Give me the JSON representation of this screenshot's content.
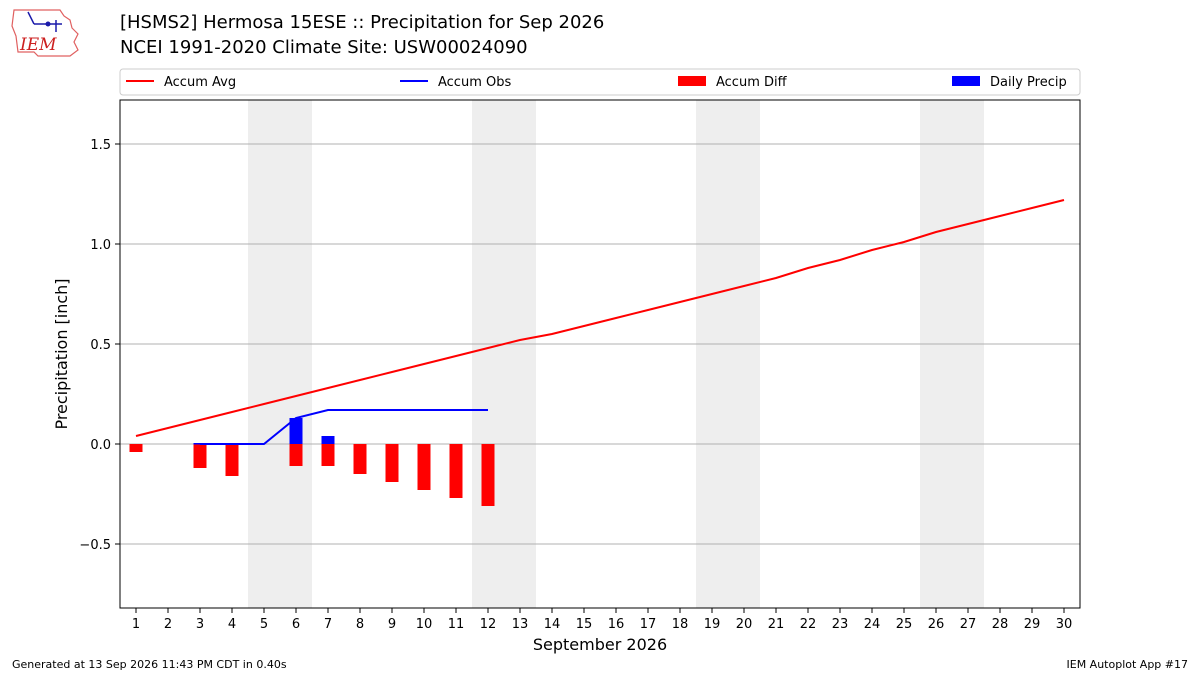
{
  "header": {
    "title_line1": "[HSMS2] Hermosa 15ESE :: Precipitation for Sep 2026",
    "title_line2": "NCEI 1991-2020 Climate Site: USW00024090",
    "logo_text": "IEM"
  },
  "footer": {
    "left": "Generated at 13 Sep 2026 11:43 PM CDT in 0.40s",
    "right": "IEM Autoplot App #17"
  },
  "colors": {
    "avg": "#ff0000",
    "obs": "#0000ff",
    "diff": "#ff0000",
    "daily": "#0000ff",
    "weekend": "#eeeeee",
    "grid": "#b0b0b0"
  },
  "chart_data": {
    "type": "bar",
    "xlabel": "September 2026",
    "ylabel": "Precipitation [inch]",
    "ylim": [
      -0.82,
      1.72
    ],
    "xlim": [
      0.5,
      30.5
    ],
    "yticks": [
      -0.5,
      0.0,
      0.5,
      1.0,
      1.5
    ],
    "ytick_labels": [
      "−0.5",
      "0.0",
      "0.5",
      "1.0",
      "1.5"
    ],
    "x": [
      1,
      2,
      3,
      4,
      5,
      6,
      7,
      8,
      9,
      10,
      11,
      12,
      13,
      14,
      15,
      16,
      17,
      18,
      19,
      20,
      21,
      22,
      23,
      24,
      25,
      26,
      27,
      28,
      29,
      30
    ],
    "weekend_ranges": [
      [
        4.5,
        6.5
      ],
      [
        11.5,
        13.5
      ],
      [
        18.5,
        20.5
      ],
      [
        25.5,
        27.5
      ]
    ],
    "legend_position": "top",
    "grid": true,
    "legend": [
      {
        "label": "Accum Avg",
        "kind": "line",
        "color": "#ff0000"
      },
      {
        "label": "Accum Obs",
        "kind": "line",
        "color": "#0000ff"
      },
      {
        "label": "Accum Diff",
        "kind": "bar",
        "color": "#ff0000"
      },
      {
        "label": "Daily Precip",
        "kind": "bar",
        "color": "#0000ff"
      }
    ],
    "series": [
      {
        "name": "Accum Avg",
        "type": "line",
        "x": [
          1,
          2,
          3,
          4,
          5,
          6,
          7,
          8,
          9,
          10,
          11,
          12,
          13,
          14,
          15,
          16,
          17,
          18,
          19,
          20,
          21,
          22,
          23,
          24,
          25,
          26,
          27,
          28,
          29,
          30
        ],
        "values": [
          0.04,
          0.08,
          0.12,
          0.16,
          0.2,
          0.24,
          0.28,
          0.32,
          0.36,
          0.4,
          0.44,
          0.48,
          0.52,
          0.55,
          0.59,
          0.63,
          0.67,
          0.71,
          0.75,
          0.79,
          0.83,
          0.88,
          0.92,
          0.97,
          1.01,
          1.06,
          1.1,
          1.14,
          1.18,
          1.22
        ]
      },
      {
        "name": "Accum Obs",
        "type": "line",
        "x": [
          3,
          4,
          5,
          6,
          7,
          8,
          9,
          10,
          11,
          12
        ],
        "values": [
          0.0,
          0.0,
          0.0,
          0.13,
          0.17,
          0.17,
          0.17,
          0.17,
          0.17,
          0.17
        ]
      },
      {
        "name": "Accum Diff",
        "type": "bar",
        "x": [
          1,
          3,
          4,
          6,
          7,
          8,
          9,
          10,
          11,
          12
        ],
        "values": [
          -0.04,
          -0.12,
          -0.16,
          -0.11,
          -0.11,
          -0.15,
          -0.19,
          -0.23,
          -0.27,
          -0.31
        ]
      },
      {
        "name": "Daily Precip",
        "type": "bar",
        "x": [
          3,
          6,
          7
        ],
        "values": [
          0.005,
          0.13,
          0.04
        ]
      }
    ]
  }
}
